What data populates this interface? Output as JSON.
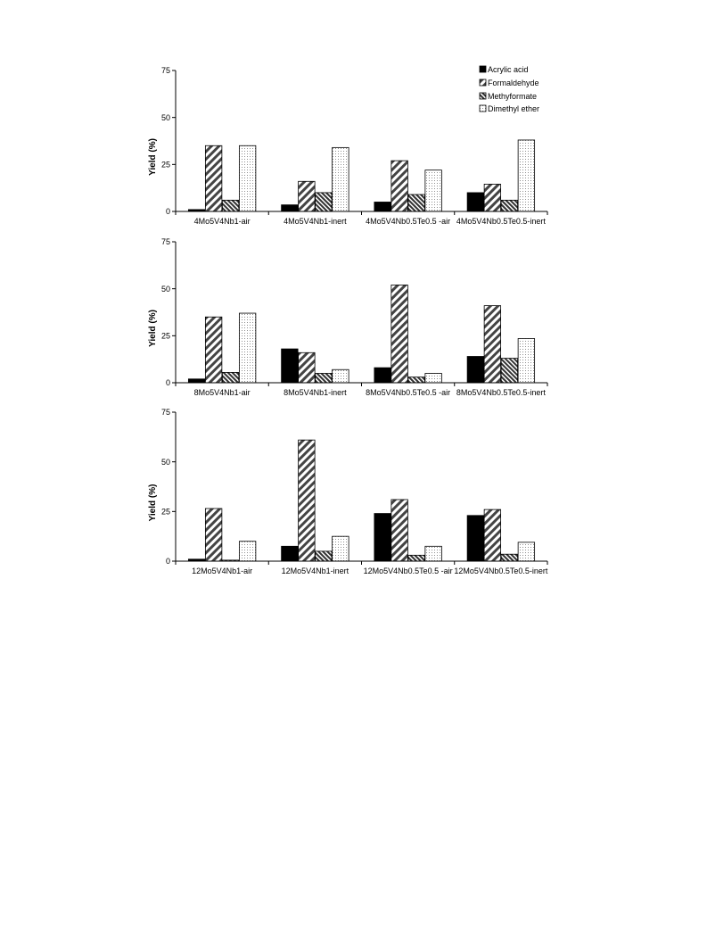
{
  "legend": {
    "items": [
      {
        "label": "Acrylic acid",
        "pattern": "solid"
      },
      {
        "label": "Formaldehyde",
        "pattern": "diag-wide"
      },
      {
        "label": "Methyformate",
        "pattern": "diag-dense"
      },
      {
        "label": "Dimethyl ether",
        "pattern": "dots"
      }
    ]
  },
  "chart_data": [
    {
      "type": "bar",
      "ylabel": "Yield (%)",
      "ylim": [
        0,
        75
      ],
      "yticks": [
        0,
        25,
        50,
        75
      ],
      "grid": false,
      "legend_position": "top-right",
      "categories": [
        "4Mo5V4Nb1-air",
        "4Mo5V4Nb1-inert",
        "4Mo5V4Nb0.5Te0.5 -air",
        "4Mo5V4Nb0.5Te0.5-inert"
      ],
      "series": [
        {
          "name": "Acrylic acid",
          "values": [
            1,
            3.5,
            5,
            10
          ]
        },
        {
          "name": "Formaldehyde",
          "values": [
            35,
            16,
            27,
            14.5
          ]
        },
        {
          "name": "Methyformate",
          "values": [
            6,
            10,
            9,
            6
          ]
        },
        {
          "name": "Dimethyl ether",
          "values": [
            35,
            34,
            22,
            38
          ]
        }
      ]
    },
    {
      "type": "bar",
      "ylabel": "Yield (%)",
      "ylim": [
        0,
        75
      ],
      "yticks": [
        0,
        25,
        50,
        75
      ],
      "grid": false,
      "categories": [
        "8Mo5V4Nb1-air",
        "8Mo5V4Nb1-inert",
        "8Mo5V4Nb0.5Te0.5 -air",
        "8Mo5V4Nb0.5Te0.5-inert"
      ],
      "series": [
        {
          "name": "Acrylic acid",
          "values": [
            2,
            18,
            8,
            14
          ]
        },
        {
          "name": "Formaldehyde",
          "values": [
            35,
            16,
            52,
            41
          ]
        },
        {
          "name": "Methyformate",
          "values": [
            5.5,
            5,
            3,
            13
          ]
        },
        {
          "name": "Dimethyl ether",
          "values": [
            37,
            7,
            5,
            23.5
          ]
        }
      ]
    },
    {
      "type": "bar",
      "ylabel": "Yield (%)",
      "ylim": [
        0,
        75
      ],
      "yticks": [
        0,
        25,
        50,
        75
      ],
      "grid": false,
      "categories": [
        "12Mo5V4Nb1-air",
        "12Mo5V4Nb1-inert",
        "12Mo5V4Nb0.5Te0.5 -air",
        "12Mo5V4Nb0.5Te0.5-inert"
      ],
      "series": [
        {
          "name": "Acrylic acid",
          "values": [
            1,
            7.5,
            24,
            23
          ]
        },
        {
          "name": "Formaldehyde",
          "values": [
            26.5,
            61,
            31,
            26
          ]
        },
        {
          "name": "Methyformate",
          "values": [
            0.5,
            5,
            3,
            3.5
          ]
        },
        {
          "name": "Dimethyl ether",
          "values": [
            10,
            12.5,
            7.5,
            9.5
          ]
        }
      ]
    }
  ]
}
